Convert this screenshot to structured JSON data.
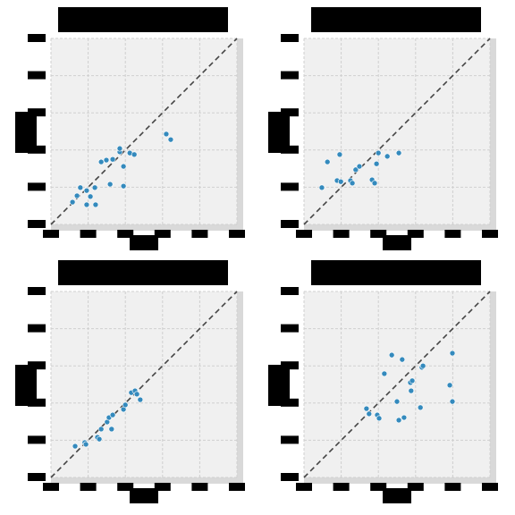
{
  "chart_data": [
    {
      "type": "scatter",
      "color": "#348abd",
      "grid": true,
      "diagonal": true,
      "xlim": [
        0,
        5
      ],
      "ylim": [
        0,
        5
      ],
      "xticks": [
        0,
        1,
        2,
        3,
        4,
        5
      ],
      "yticks": [
        0,
        1,
        2,
        3,
        4,
        5
      ],
      "x": [
        0.58,
        0.7,
        0.79,
        0.96,
        0.96,
        1.06,
        1.18,
        1.2,
        1.35,
        1.49,
        1.59,
        1.66,
        1.85,
        1.85,
        1.95,
        1.95,
        2.12,
        2.24,
        3.1,
        3.22
      ],
      "values": [
        0.6,
        0.77,
        0.99,
        0.91,
        0.53,
        0.75,
        0.99,
        0.53,
        1.68,
        1.73,
        1.08,
        1.75,
        1.95,
        2.04,
        1.56,
        1.03,
        1.92,
        1.88,
        2.43,
        2.28
      ]
    },
    {
      "type": "scatter",
      "color": "#348abd",
      "grid": true,
      "diagonal": true,
      "xlim": [
        0,
        5
      ],
      "ylim": [
        0,
        5
      ],
      "xticks": [
        0,
        1,
        2,
        3,
        4,
        5
      ],
      "yticks": [
        0,
        1,
        2,
        3,
        4,
        5
      ],
      "x": [
        0.48,
        0.63,
        0.89,
        0.96,
        0.99,
        1.25,
        1.3,
        1.39,
        1.49,
        1.83,
        1.9,
        1.95,
        2.0,
        2.24,
        2.55
      ],
      "values": [
        0.99,
        1.68,
        1.18,
        1.88,
        1.15,
        1.18,
        1.11,
        1.47,
        1.56,
        1.2,
        1.11,
        1.63,
        1.92,
        1.83,
        1.92
      ]
    },
    {
      "type": "scatter",
      "color": "#348abd",
      "grid": true,
      "diagonal": true,
      "xlim": [
        0,
        5
      ],
      "ylim": [
        0,
        5
      ],
      "xticks": [
        0,
        1,
        2,
        3,
        4,
        5
      ],
      "yticks": [
        0,
        1,
        2,
        3,
        4,
        5
      ],
      "x": [
        0.65,
        0.91,
        0.94,
        1.25,
        1.3,
        1.35,
        1.51,
        1.56,
        1.63,
        1.66,
        1.95,
        2.0,
        2.16,
        2.26,
        2.31,
        2.4
      ],
      "values": [
        0.84,
        0.94,
        0.89,
        1.08,
        1.03,
        1.3,
        1.49,
        1.61,
        1.3,
        1.68,
        1.83,
        1.95,
        2.28,
        2.33,
        2.24,
        2.09
      ]
    },
    {
      "type": "scatter",
      "color": "#348abd",
      "grid": true,
      "diagonal": true,
      "xlim": [
        0,
        5
      ],
      "ylim": [
        0,
        5
      ],
      "xticks": [
        0,
        1,
        2,
        3,
        4,
        5
      ],
      "yticks": [
        0,
        1,
        2,
        3,
        4,
        5
      ],
      "x": [
        1.68,
        1.75,
        1.97,
        2.02,
        2.16,
        2.36,
        2.5,
        2.55,
        2.64,
        2.69,
        2.86,
        2.88,
        2.91,
        3.13,
        3.17,
        3.2,
        3.92,
        3.99,
        3.99
      ],
      "values": [
        1.85,
        1.71,
        1.68,
        1.59,
        2.79,
        3.29,
        2.04,
        1.54,
        3.17,
        1.61,
        2.55,
        2.33,
        2.6,
        1.88,
        2.96,
        3.0,
        2.48,
        3.34,
        2.04
      ]
    }
  ]
}
